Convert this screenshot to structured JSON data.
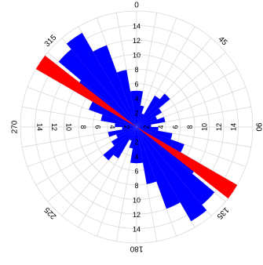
{
  "chart_data": {
    "type": "rose",
    "bin_width_deg": 10,
    "symmetric": true,
    "radial_max": 16,
    "radial_ticks": [
      2,
      4,
      6,
      8,
      10,
      12,
      14
    ],
    "radial_tick_labels": [
      "2",
      "4",
      "6",
      "8",
      "10",
      "12",
      "14"
    ],
    "angle_ticks": [
      0,
      45,
      90,
      135,
      180,
      225,
      270,
      315
    ],
    "angle_tick_labels": [
      "0",
      "45",
      "90",
      "135",
      "180",
      "225",
      "270",
      "315"
    ],
    "angular_grid_step_deg": 10,
    "grid": true,
    "series": [
      {
        "bins": [
          {
            "from": 0,
            "to": 10,
            "value": 5
          },
          {
            "from": 10,
            "to": 20,
            "value": 3
          },
          {
            "from": 20,
            "to": 30,
            "value": 2
          },
          {
            "from": 30,
            "to": 40,
            "value": 5
          },
          {
            "from": 40,
            "to": 50,
            "value": 6
          },
          {
            "from": 50,
            "to": 60,
            "value": 4
          },
          {
            "from": 60,
            "to": 70,
            "value": 3
          },
          {
            "from": 70,
            "to": 80,
            "value": 4
          },
          {
            "from": 80,
            "to": 90,
            "value": 2
          },
          {
            "from": 90,
            "to": 100,
            "value": 3
          },
          {
            "from": 100,
            "to": 110,
            "value": 5
          },
          {
            "from": 110,
            "to": 120,
            "value": 7
          },
          {
            "from": 120,
            "to": 130,
            "value": 10
          },
          {
            "from": 130,
            "to": 140,
            "value": 14
          },
          {
            "from": 140,
            "to": 150,
            "value": 15
          },
          {
            "from": 150,
            "to": 160,
            "value": 12
          },
          {
            "from": 160,
            "to": 170,
            "value": 8
          },
          {
            "from": 170,
            "to": 180,
            "value": 5
          }
        ],
        "color": "#0000ff"
      }
    ],
    "mean_direction": {
      "angle_deg": 124,
      "half_width_deg": 4,
      "length": 16,
      "color": "#ff0000"
    }
  }
}
